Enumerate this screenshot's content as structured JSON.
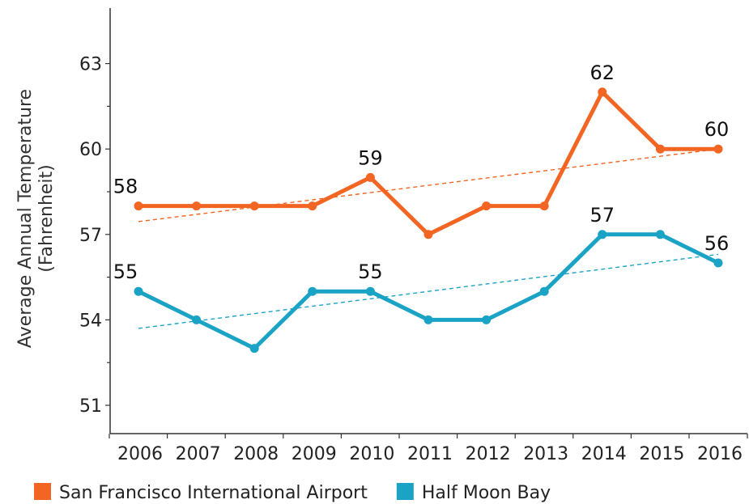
{
  "chart_data": {
    "type": "line",
    "ylabel": "Average Annual Temperature",
    "ylabel_sub": "(Fahrenheit)",
    "xlabel": "",
    "x": [
      "2006",
      "2007",
      "2008",
      "2009",
      "2010",
      "2011",
      "2012",
      "2013",
      "2014",
      "2015",
      "2016"
    ],
    "yticks": [
      51,
      54,
      57,
      60,
      63
    ],
    "ylim": [
      50,
      64.8
    ],
    "grid": false,
    "legend_position": "bottom-left",
    "series": [
      {
        "name": "San Francisco International Airport",
        "color": "#f26522",
        "values": [
          58,
          58,
          58,
          58,
          59,
          57,
          58,
          58,
          62,
          60,
          60
        ],
        "labels": [
          {
            "x": "2006",
            "text": "58"
          },
          {
            "x": "2010",
            "text": "59"
          },
          {
            "x": "2014",
            "text": "62"
          },
          {
            "x": "2016",
            "text": "60"
          }
        ],
        "trend": {
          "start": 57.45,
          "end": 60.0
        }
      },
      {
        "name": "Half Moon Bay",
        "color": "#1ba3c6",
        "values": [
          55,
          54,
          53,
          55,
          55,
          54,
          54,
          55,
          57,
          57,
          56
        ],
        "labels": [
          {
            "x": "2006",
            "text": "55"
          },
          {
            "x": "2010",
            "text": "55"
          },
          {
            "x": "2014",
            "text": "57"
          },
          {
            "x": "2016",
            "text": "56"
          }
        ],
        "trend": {
          "start": 53.7,
          "end": 56.3
        }
      }
    ]
  }
}
